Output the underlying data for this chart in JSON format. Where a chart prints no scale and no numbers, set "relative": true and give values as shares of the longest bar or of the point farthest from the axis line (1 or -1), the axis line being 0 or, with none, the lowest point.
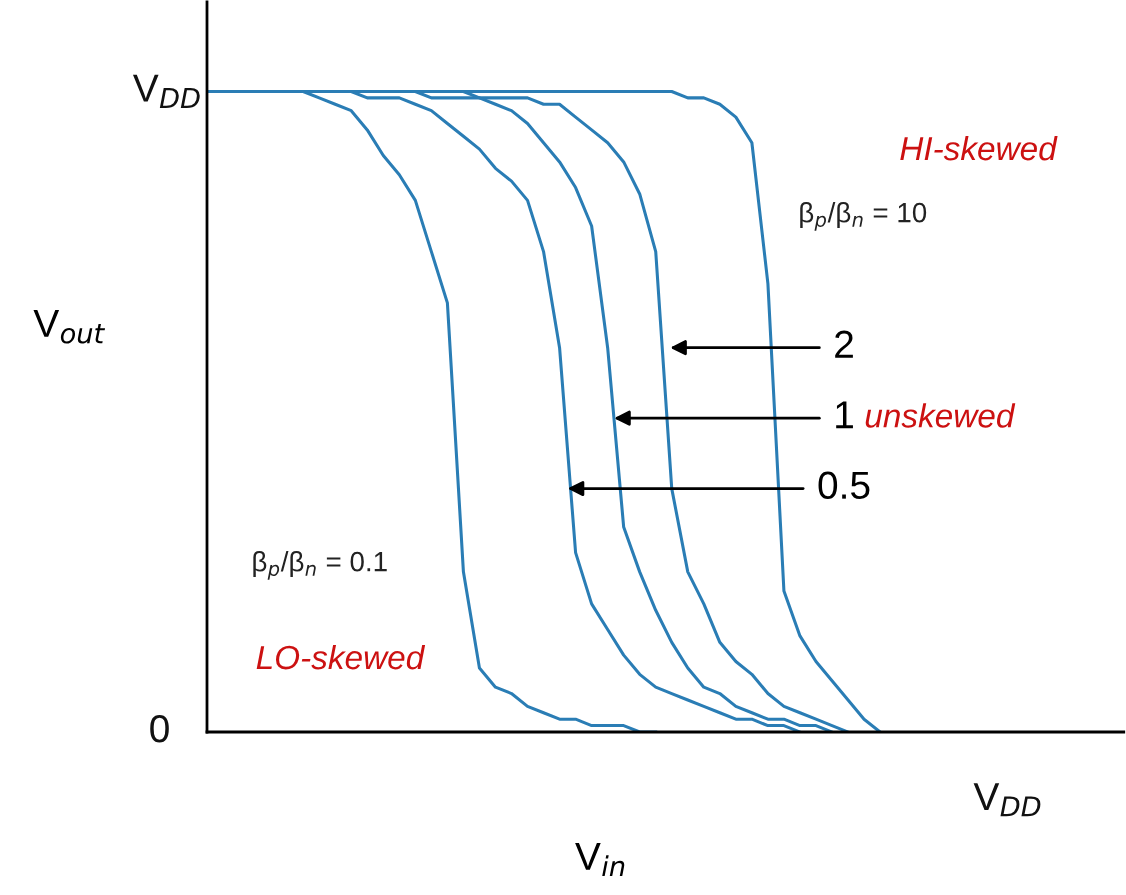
{
  "chart_data": {
    "type": "line",
    "xlabel": "V$_{in}$",
    "ylabel": "V$_{out}$",
    "categories": [
      null,
      null,
      null,
      null,
      null,
      null,
      null,
      null,
      null,
      null,
      null,
      null,
      null,
      null,
      null,
      null,
      null,
      null,
      null,
      null,
      null,
      null,
      null,
      null,
      null,
      null,
      null,
      null,
      null,
      null,
      null,
      null,
      null,
      null,
      null,
      null,
      null,
      null,
      null,
      null,
      null,
      null,
      null
    ],
    "relative": true,
    "marker": "none",
    "line_style": "solid",
    "series": [
      {
        "color": "#2a7db5",
        "values": [
          1,
          1,
          1,
          1,
          1,
          1,
          1,
          0.99,
          0.98,
          0.97,
          0.94,
          0.9,
          0.87,
          0.83,
          0.75,
          0.67,
          0.25,
          0.1,
          0.07,
          0.06,
          0.04,
          0.03,
          0.02,
          0.02,
          0.01,
          0.01,
          0.01,
          0,
          0,
          null,
          null,
          null,
          null,
          null,
          null,
          null,
          null,
          null,
          null,
          null,
          null,
          null,
          null
        ]
      },
      {
        "color": "#2a7db5",
        "values": [
          1,
          1,
          1,
          1,
          1,
          1,
          1,
          1,
          1,
          1,
          0.99,
          0.99,
          0.99,
          0.98,
          0.97,
          0.95,
          0.93,
          0.91,
          0.88,
          0.86,
          0.83,
          0.75,
          0.6,
          0.28,
          0.2,
          0.16,
          0.12,
          0.09,
          0.07,
          0.06,
          0.05,
          0.04,
          0.03,
          0.02,
          0.02,
          0.01,
          0.01,
          0,
          null,
          null,
          null,
          null,
          null
        ]
      },
      {
        "color": "#2a7db5",
        "values": [
          1,
          1,
          1,
          1,
          1,
          1,
          1,
          1,
          1,
          1,
          1,
          1,
          1,
          1,
          0.99,
          0.99,
          0.99,
          0.99,
          0.98,
          0.97,
          0.95,
          0.92,
          0.89,
          0.85,
          0.79,
          0.6,
          0.32,
          0.25,
          0.19,
          0.14,
          0.1,
          0.07,
          0.06,
          0.04,
          0.03,
          0.02,
          0.02,
          0.01,
          0.01,
          0,
          null,
          null,
          null
        ]
      },
      {
        "color": "#2a7db5",
        "values": [
          1,
          1,
          1,
          1,
          1,
          1,
          1,
          1,
          1,
          1,
          1,
          1,
          1,
          1,
          1,
          1,
          1,
          0.99,
          0.99,
          0.99,
          0.99,
          0.98,
          0.98,
          0.96,
          0.94,
          0.92,
          0.89,
          0.84,
          0.75,
          0.38,
          0.25,
          0.2,
          0.14,
          0.11,
          0.09,
          0.06,
          0.04,
          0.03,
          0.02,
          0.01,
          0,
          null,
          null
        ]
      },
      {
        "color": "#2a7db5",
        "values": [
          1,
          1,
          1,
          1,
          1,
          1,
          1,
          1,
          1,
          1,
          1,
          1,
          1,
          1,
          1,
          1,
          1,
          1,
          1,
          1,
          1,
          1,
          1,
          1,
          1,
          1,
          1,
          1,
          1,
          1,
          0.99,
          0.99,
          0.98,
          0.96,
          0.92,
          0.7,
          0.22,
          0.15,
          0.11,
          0.08,
          0.05,
          0.02,
          0
        ]
      }
    ],
    "annotations": [
      "2",
      "1",
      "0.5",
      "HI-skewed",
      "β$_{p}$/β$_{n}$ = 10",
      "unskewed",
      "β$_{p}$/β$_{n}$ = 0.1",
      "LO-skewed",
      "V$_{DD}$",
      "0",
      "V$_{DD}$"
    ]
  }
}
